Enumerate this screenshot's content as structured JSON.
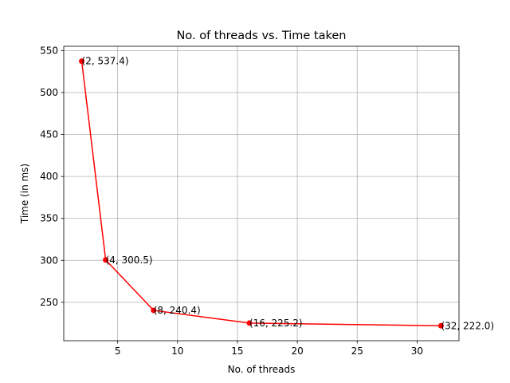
{
  "chart_data": {
    "type": "line",
    "title": "No. of threads vs. Time taken",
    "xlabel": "No. of threads",
    "ylabel": "Time (in ms)",
    "xlim": [
      0.5,
      33.5
    ],
    "ylim": [
      204.2,
      555.2
    ],
    "xticks": [
      5,
      10,
      15,
      20,
      25,
      30
    ],
    "yticks": [
      250,
      300,
      350,
      400,
      450,
      500,
      550
    ],
    "grid": true,
    "series": [
      {
        "color": "#ff0000",
        "marker": "circle",
        "x": [
          2,
          4,
          8,
          16,
          32
        ],
        "y": [
          537.4,
          300.5,
          240.4,
          225.2,
          222.0
        ],
        "labels": [
          "(2, 537.4)",
          "(4, 300.5)",
          "(8, 240.4)",
          "(16, 225.2)",
          "(32, 222.0)"
        ]
      }
    ]
  }
}
